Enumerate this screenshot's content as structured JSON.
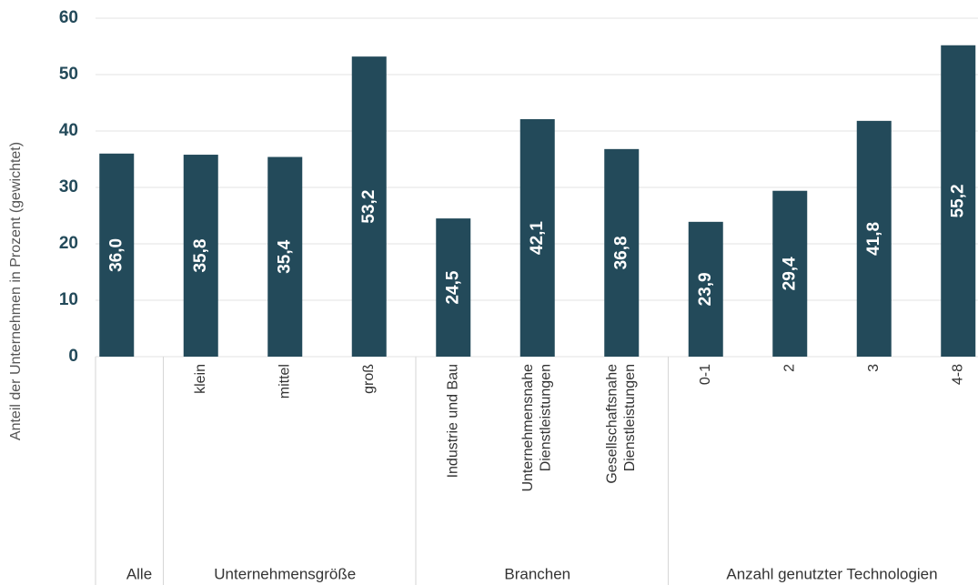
{
  "chart_data": {
    "type": "bar",
    "color": "#234a5a",
    "y_label": "Anteil der Unternehmen in Prozent (gewichtet)",
    "ylim": [
      0,
      60
    ],
    "yticks": [
      0,
      10,
      20,
      30,
      40,
      50,
      60
    ],
    "grid": true,
    "groups": [
      {
        "name": "Alle",
        "categories": [
          null
        ],
        "values": [
          36.0
        ],
        "value_labels": [
          "36,0"
        ]
      },
      {
        "name": "Unternehmensgröße",
        "categories": [
          "klein",
          "mittel",
          "groß"
        ],
        "values": [
          35.8,
          35.4,
          53.2
        ],
        "value_labels": [
          "35,8",
          "35,4",
          "53,2"
        ]
      },
      {
        "name": "Branchen",
        "categories": [
          "Industrie und Bau",
          "Unternehmensnahe\nDienstleistungen",
          "Gesellschaftsnahe\nDienstleistungen"
        ],
        "values": [
          24.5,
          42.1,
          36.8
        ],
        "value_labels": [
          "24,5",
          "42,1",
          "36,8"
        ]
      },
      {
        "name": "Anzahl genutzter Technologien",
        "categories": [
          "0-1",
          "2",
          "3",
          "4-8"
        ],
        "values": [
          23.9,
          29.4,
          41.8,
          55.2
        ],
        "value_labels": [
          "23,9",
          "29,4",
          "41,8",
          "55,2"
        ]
      }
    ]
  }
}
